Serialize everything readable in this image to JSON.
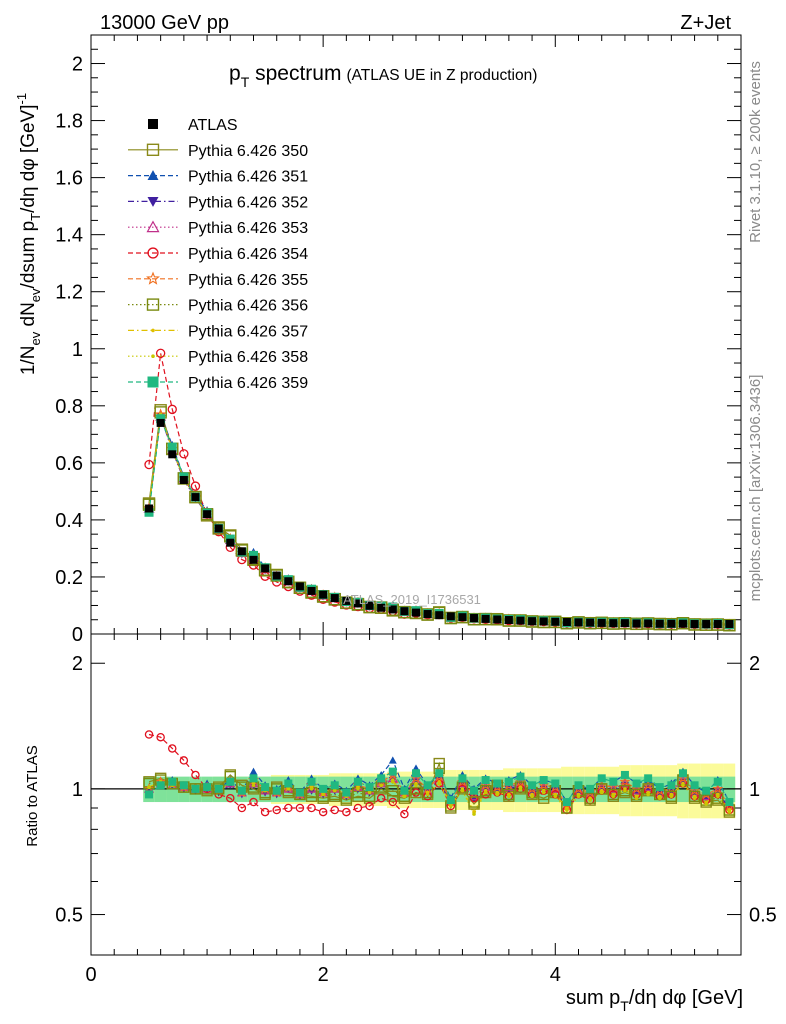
{
  "header": {
    "energy": "13000 GeV pp",
    "process": "Z+Jet"
  },
  "side_labels": {
    "rivet": "Rivet 3.1.10, ≥ 200k events",
    "mcplots": "mcplots.cern.ch [arXiv:1306.3436]"
  },
  "watermark": "ATLAS_2019_I1736531",
  "chart_data": [
    {
      "type": "line",
      "panel": "main",
      "title": "p_T spectrum",
      "title_main": "p",
      "title_sub": "T",
      "title_rest": " spectrum",
      "title_note": "(ATLAS UE in Z production)",
      "ylabel": "1/N_ev dN_ev/dsum p_T/dη dφ [GeV]^-1",
      "ylim": [
        0,
        2.1
      ],
      "xlim": [
        0,
        5.6
      ],
      "yticks": [
        0,
        0.2,
        0.4,
        0.6,
        0.8,
        1,
        1.2,
        1.4,
        1.6,
        1.8,
        2
      ],
      "ytick_labels": [
        "0",
        "0.2",
        "0.4",
        "0.6",
        "0.8",
        "1",
        "1.2",
        "1.4",
        "1.6",
        "1.8",
        "2"
      ],
      "x": [
        0.5,
        0.6,
        0.7,
        0.8,
        0.9,
        1.0,
        1.1,
        1.2,
        1.3,
        1.4,
        1.5,
        1.6,
        1.7,
        1.8,
        1.9,
        2.0,
        2.1,
        2.2,
        2.3,
        2.4,
        2.5,
        2.6,
        2.7,
        2.8,
        2.9,
        3.0,
        3.1,
        3.2,
        3.3,
        3.4,
        3.5,
        3.6,
        3.7,
        3.8,
        3.9,
        4.0,
        4.1,
        4.2,
        4.3,
        4.4,
        4.5,
        4.6,
        4.7,
        4.8,
        4.9,
        5.0,
        5.1,
        5.2,
        5.3,
        5.4,
        5.5
      ],
      "atlas": [
        0.44,
        0.74,
        0.63,
        0.54,
        0.48,
        0.42,
        0.37,
        0.32,
        0.29,
        0.26,
        0.23,
        0.205,
        0.185,
        0.167,
        0.151,
        0.138,
        0.126,
        0.116,
        0.107,
        0.099,
        0.092,
        0.086,
        0.08,
        0.075,
        0.07,
        0.066,
        0.062,
        0.059,
        0.056,
        0.053,
        0.051,
        0.049,
        0.047,
        0.045,
        0.044,
        0.043,
        0.042,
        0.041,
        0.04,
        0.039,
        0.038,
        0.038,
        0.037,
        0.037,
        0.036,
        0.036,
        0.036,
        0.035,
        0.035,
        0.035,
        0.035
      ],
      "series": [
        {
          "name": "ATLAS",
          "label": "ATLAS",
          "color": "#000000",
          "marker": "filled-square",
          "style": "none"
        },
        {
          "name": "Pythia 6.426 350",
          "label": "Pythia 6.426 350",
          "color": "#8a8a1a",
          "marker": "open-square",
          "style": "solid"
        },
        {
          "name": "Pythia 6.426 351",
          "label": "Pythia 6.426 351",
          "color": "#1050b0",
          "marker": "filled-triangle-up",
          "style": "dashed"
        },
        {
          "name": "Pythia 6.426 352",
          "label": "Pythia 6.426 352",
          "color": "#4020a0",
          "marker": "filled-triangle-down",
          "style": "dashdot"
        },
        {
          "name": "Pythia 6.426 353",
          "label": "Pythia 6.426 353",
          "color": "#c0308a",
          "marker": "open-triangle-up",
          "style": "dotted"
        },
        {
          "name": "Pythia 6.426 354",
          "label": "Pythia 6.426 354",
          "color": "#e0101e",
          "marker": "open-circle",
          "style": "dashed"
        },
        {
          "name": "Pythia 6.426 355",
          "label": "Pythia 6.426 355",
          "color": "#f07020",
          "marker": "open-star",
          "style": "dashed"
        },
        {
          "name": "Pythia 6.426 356",
          "label": "Pythia 6.426 356",
          "color": "#7a8a10",
          "marker": "open-square",
          "style": "dotted"
        },
        {
          "name": "Pythia 6.426 357",
          "label": "Pythia 6.426 357",
          "color": "#e0c000",
          "marker": "small-dot",
          "style": "dashdot"
        },
        {
          "name": "Pythia 6.426 358",
          "label": "Pythia 6.426 358",
          "color": "#c8c800",
          "marker": "small-dot",
          "style": "dotted"
        },
        {
          "name": "Pythia 6.426 359",
          "label": "Pythia 6.426 359",
          "color": "#20b880",
          "marker": "filled-square",
          "style": "dashed"
        }
      ],
      "mc_ratios": {
        "350": [
          1.04,
          1.06,
          1.03,
          1.01,
          1.0,
          0.99,
          1.01,
          1.08,
          1.02,
          1.0,
          0.97,
          1.01,
          0.98,
          0.97,
          0.96,
          0.95,
          0.96,
          0.94,
          0.96,
          0.95,
          1.0,
          0.96,
          0.95,
          0.98,
          0.97,
          1.15,
          0.9,
          1.0,
          0.92,
          0.98,
          1.02,
          0.96,
          1.0,
          0.97,
          0.95,
          0.98,
          0.9,
          0.99,
          0.94,
          1.0,
          0.96,
          0.98,
          0.96,
          0.99,
          0.97,
          0.95,
          1.05,
          0.95,
          0.93,
          0.94,
          0.88
        ],
        "351": [
          1.0,
          1.04,
          1.05,
          1.02,
          1.01,
          1.03,
          1.0,
          1.05,
          0.99,
          1.1,
          1.02,
          1.0,
          1.05,
          0.98,
          1.06,
          1.0,
          1.03,
          0.99,
          1.06,
          1.02,
          1.08,
          1.17,
          1.0,
          1.12,
          1.02,
          1.08,
          0.95,
          1.08,
          1.0,
          1.06,
          1.03,
          1.05,
          1.08,
          1.02,
          1.05,
          1.03,
          0.93,
          1.02,
          1.0,
          1.06,
          1.04,
          1.08,
          1.03,
          1.05,
          1.0,
          1.03,
          1.1,
          1.02,
          0.98,
          1.05,
          0.93
        ],
        "352": [
          0.99,
          1.03,
          1.02,
          1.0,
          0.99,
          1.0,
          0.98,
          1.02,
          0.97,
          1.02,
          0.98,
          0.97,
          1.0,
          0.96,
          0.99,
          0.97,
          0.99,
          0.96,
          1.0,
          0.98,
          1.02,
          1.05,
          0.97,
          1.04,
          0.98,
          1.05,
          0.92,
          1.02,
          0.95,
          1.0,
          0.99,
          1.0,
          1.02,
          0.98,
          1.0,
          0.99,
          0.9,
          0.98,
          0.96,
          1.0,
          0.99,
          1.02,
          0.98,
          1.0,
          0.97,
          0.98,
          1.04,
          0.97,
          0.95,
          0.98,
          0.9
        ],
        "353": [
          1.0,
          1.03,
          1.02,
          1.01,
          1.0,
          1.0,
          0.99,
          1.03,
          0.98,
          1.03,
          0.99,
          0.98,
          1.0,
          0.97,
          1.0,
          0.98,
          1.0,
          0.97,
          1.01,
          0.99,
          1.03,
          1.06,
          0.98,
          1.05,
          0.99,
          1.06,
          0.93,
          1.03,
          0.96,
          1.01,
          1.0,
          1.01,
          1.03,
          0.99,
          1.01,
          1.0,
          0.91,
          0.99,
          0.97,
          1.01,
          1.0,
          1.03,
          0.99,
          1.01,
          0.98,
          0.99,
          1.05,
          0.98,
          0.96,
          0.99,
          0.91
        ],
        "354": [
          1.35,
          1.33,
          1.25,
          1.17,
          1.08,
          1.0,
          0.97,
          0.95,
          0.9,
          0.93,
          0.88,
          0.89,
          0.9,
          0.9,
          0.9,
          0.88,
          0.89,
          0.88,
          0.9,
          0.91,
          0.95,
          0.93,
          0.87,
          0.98,
          0.96,
          1.03,
          0.91,
          1.0,
          0.95,
          0.97,
          0.98,
          0.96,
          1.0,
          0.97,
          0.99,
          0.97,
          0.89,
          0.97,
          0.94,
          0.99,
          0.97,
          1.01,
          0.97,
          0.99,
          0.96,
          0.97,
          1.03,
          0.96,
          0.94,
          0.97,
          0.89
        ],
        "355": [
          1.0,
          1.04,
          1.03,
          1.01,
          1.0,
          1.01,
          0.99,
          1.04,
          0.98,
          1.05,
          1.0,
          0.98,
          1.01,
          0.97,
          1.02,
          0.98,
          1.01,
          0.97,
          1.02,
          1.0,
          1.04,
          1.08,
          0.98,
          1.06,
          1.0,
          1.07,
          0.93,
          1.04,
          0.97,
          1.02,
          1.01,
          1.02,
          1.04,
          1.0,
          1.02,
          1.01,
          0.91,
          1.0,
          0.98,
          1.02,
          1.01,
          1.04,
          1.0,
          1.02,
          0.99,
          1.0,
          1.06,
          0.99,
          0.97,
          1.0,
          0.91
        ],
        "356": [
          1.03,
          1.05,
          1.03,
          1.01,
          1.0,
          1.0,
          1.0,
          1.07,
          1.01,
          1.01,
          0.98,
          1.0,
          0.99,
          0.97,
          0.98,
          0.96,
          0.97,
          0.95,
          0.98,
          0.96,
          1.01,
          0.99,
          0.96,
          1.0,
          0.98,
          1.12,
          0.91,
          1.01,
          0.93,
          0.99,
          1.01,
          0.97,
          1.01,
          0.98,
          0.97,
          0.99,
          0.9,
          0.99,
          0.95,
          1.0,
          0.97,
          0.99,
          0.97,
          1.0,
          0.97,
          0.96,
          1.05,
          0.96,
          0.94,
          0.95,
          0.89
        ],
        "357": [
          1.01,
          1.04,
          1.03,
          1.01,
          1.0,
          1.0,
          0.99,
          1.03,
          0.98,
          1.03,
          0.99,
          0.98,
          1.01,
          0.97,
          1.01,
          0.98,
          1.0,
          0.97,
          1.01,
          0.99,
          1.02,
          1.05,
          0.96,
          1.03,
          0.98,
          1.04,
          0.92,
          1.0,
          0.88,
          0.99,
          0.98,
          0.97,
          1.01,
          0.97,
          0.99,
          0.97,
          0.9,
          0.97,
          0.95,
          0.99,
          0.97,
          1.0,
          0.96,
          0.98,
          0.96,
          0.97,
          1.03,
          0.96,
          0.93,
          0.97,
          0.89
        ],
        "358": [
          1.01,
          1.04,
          1.02,
          1.01,
          1.0,
          1.0,
          0.99,
          1.03,
          0.98,
          1.02,
          0.99,
          0.98,
          1.0,
          0.97,
          1.0,
          0.97,
          0.99,
          0.96,
          1.0,
          0.98,
          1.02,
          1.04,
          0.96,
          1.02,
          0.97,
          1.03,
          0.91,
          0.99,
          0.87,
          0.98,
          0.97,
          0.96,
          1.0,
          0.96,
          0.98,
          0.96,
          0.89,
          0.96,
          0.94,
          0.98,
          0.96,
          0.99,
          0.95,
          0.97,
          0.95,
          0.96,
          1.02,
          0.95,
          0.92,
          0.96,
          0.88
        ],
        "359": [
          0.97,
          1.02,
          1.04,
          1.02,
          1.0,
          1.01,
          1.0,
          1.04,
          0.99,
          1.06,
          1.01,
          0.99,
          1.03,
          0.98,
          1.04,
          1.0,
          1.02,
          0.98,
          1.04,
          1.01,
          1.06,
          1.1,
          0.99,
          1.09,
          1.02,
          1.09,
          0.94,
          1.06,
          0.99,
          1.05,
          1.03,
          1.04,
          1.07,
          1.02,
          1.05,
          1.03,
          0.93,
          1.02,
          1.0,
          1.06,
          1.04,
          1.08,
          1.03,
          1.06,
          1.01,
          1.02,
          1.09,
          1.02,
          0.99,
          1.04,
          0.93
        ]
      }
    },
    {
      "type": "line",
      "panel": "ratio",
      "ylabel": "Ratio to ATLAS",
      "ylim": [
        0.4,
        2.35
      ],
      "yticks": [
        0.5,
        1,
        2
      ],
      "ytick_labels": [
        "0.5",
        "1",
        "2"
      ],
      "reference_line": 1,
      "band_inner": [
        0.07,
        0.07,
        0.07,
        0.07,
        0.07,
        0.07,
        0.07,
        0.07,
        0.07,
        0.07,
        0.07,
        0.07,
        0.07,
        0.07,
        0.07,
        0.07,
        0.07,
        0.07,
        0.07,
        0.07,
        0.07,
        0.07,
        0.07,
        0.07,
        0.07,
        0.07,
        0.07,
        0.07,
        0.07,
        0.07,
        0.07,
        0.07,
        0.07,
        0.07,
        0.07,
        0.07,
        0.07,
        0.07,
        0.07,
        0.07,
        0.07,
        0.07,
        0.07,
        0.07,
        0.07,
        0.07,
        0.07,
        0.07,
        0.07,
        0.07,
        0.07
      ],
      "band_outer": [
        0.05,
        0.05,
        0.06,
        0.06,
        0.06,
        0.06,
        0.07,
        0.07,
        0.07,
        0.07,
        0.07,
        0.08,
        0.08,
        0.08,
        0.08,
        0.08,
        0.09,
        0.09,
        0.09,
        0.09,
        0.09,
        0.1,
        0.1,
        0.1,
        0.1,
        0.1,
        0.11,
        0.11,
        0.11,
        0.11,
        0.11,
        0.12,
        0.12,
        0.12,
        0.12,
        0.12,
        0.13,
        0.13,
        0.13,
        0.13,
        0.13,
        0.14,
        0.14,
        0.14,
        0.14,
        0.14,
        0.15,
        0.15,
        0.15,
        0.15,
        0.15
      ]
    }
  ],
  "x_axis": {
    "label_main": "sum p",
    "label_sub": "T",
    "label_rest": "/dη dφ [GeV]",
    "ticks": [
      0,
      2,
      4
    ],
    "tick_labels": [
      "0",
      "2",
      "4"
    ]
  },
  "y_axis_label": {
    "p1": "1/N",
    "s1": "ev",
    "p2": " dN",
    "s2": "ev",
    "p3": "/dsum p",
    "s3": "T",
    "p4": "/dη dφ [GeV]",
    "sup": "-1"
  }
}
